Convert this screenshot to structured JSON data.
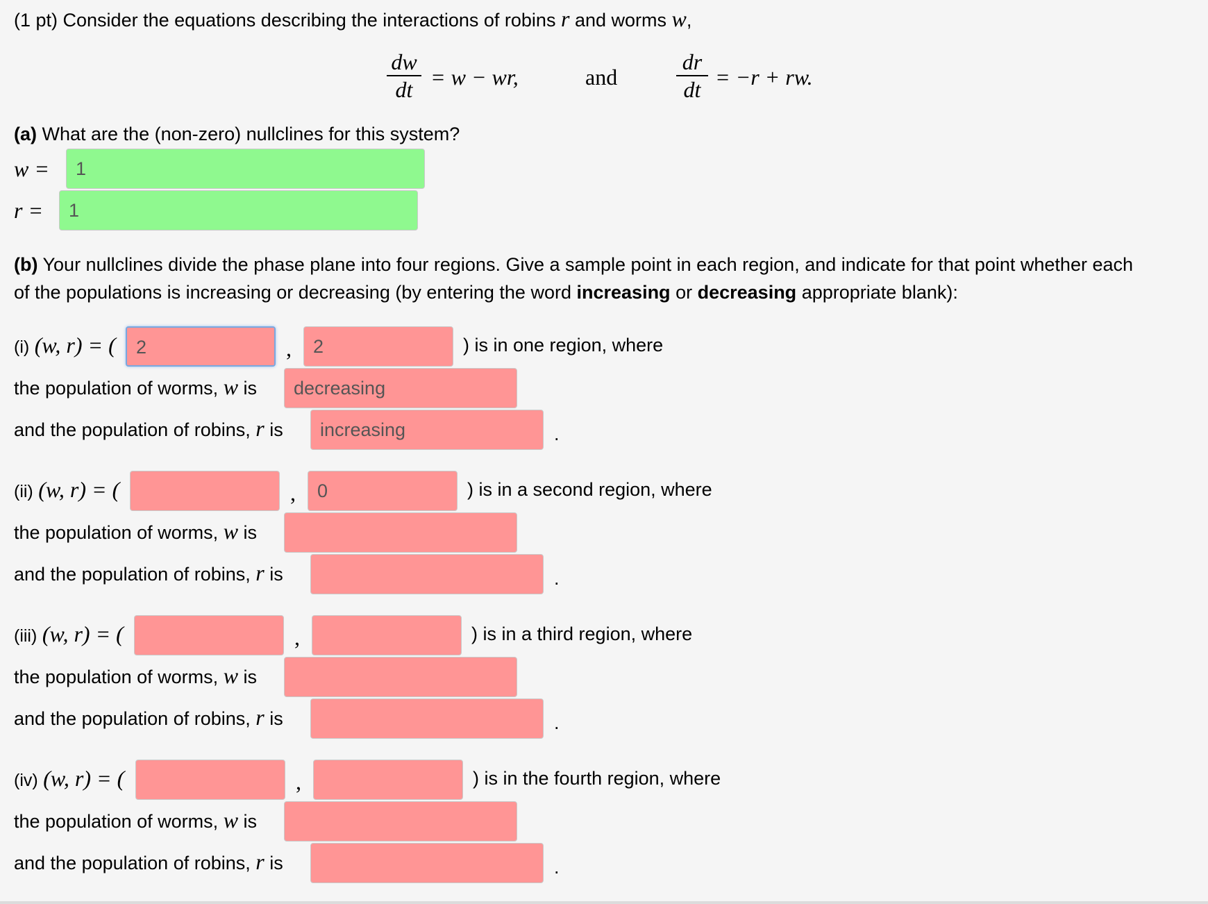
{
  "intro": {
    "prefix": "(1 pt) Consider the equations describing the interactions of robins",
    "var_r": "r",
    "mid": "and worms",
    "var_w": "w",
    "suffix": ","
  },
  "equations": {
    "eq1_num": "dw",
    "eq1_den": "dt",
    "eq1_rhs": "= w − wr,",
    "and_word": "and",
    "eq2_num": "dr",
    "eq2_den": "dt",
    "eq2_rhs": "= −r + rw."
  },
  "part_a": {
    "label": "(a)",
    "question": "What are the (non-zero) nullclines for this system?",
    "w_label": "w =",
    "w_value": "1",
    "r_label": "r =",
    "r_value": "1"
  },
  "part_b": {
    "label": "(b)",
    "line1": "Your nullclines divide the phase plane into four regions. Give a sample point in each region, and indicate for that point whether each",
    "line2_a": "of the populations is increasing or decreasing (by entering the word",
    "bold_increasing": "increasing",
    "or_word": "or",
    "bold_decreasing": "decreasing",
    "line2_b": "appropriate blank):"
  },
  "common": {
    "wr_tuple": "(w, r) = (",
    "comma": ",",
    "worms_label_a": "the population of worms,",
    "worms_var": "w",
    "worms_label_b": "is",
    "robins_label_a": "and the population of robins,",
    "robins_var": "r",
    "robins_label_b": "is",
    "period": "."
  },
  "regions": [
    {
      "label": "(i)",
      "w": "2",
      "r": "2",
      "suffix": ") is in one region, where",
      "worms": "decreasing",
      "robins": "increasing"
    },
    {
      "label": "(ii)",
      "w": "",
      "r": "0",
      "suffix": ") is in a second region, where",
      "worms": "",
      "robins": ""
    },
    {
      "label": "(iii)",
      "w": "",
      "r": "",
      "suffix": ") is in a third region, where",
      "worms": "",
      "robins": ""
    },
    {
      "label": "(iv)",
      "w": "",
      "r": "",
      "suffix": ") is in the fourth region, where",
      "worms": "",
      "robins": ""
    }
  ],
  "colors": {
    "correct": "#8ff98f",
    "incorrect": "#ff9595",
    "focus_border": "#79a8e0"
  }
}
